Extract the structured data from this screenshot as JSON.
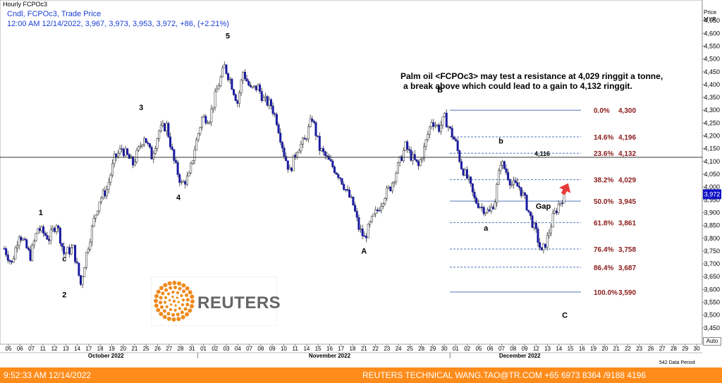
{
  "header": {
    "title": "Hourly FCPOc3",
    "legend_line1": "Cndl, FCPOc3, Trade Price",
    "legend_line2": "12:00 AM 12/14/2022, 3,967, 3,973, 3,953, 3,972, +86, (+2.21%)"
  },
  "annotation": {
    "line1": "Palm oil <FCPOc3> may test a resistance at 4,029 ringgit a tonne,",
    "line2": "a break above which could lead to a gain to 4,132 ringgit."
  },
  "logo": {
    "text": "REUTERS"
  },
  "footer": {
    "time": "9:52:33 AM 12/14/2022",
    "credit": "REUTERS TECHNICAL  WANG.TAO@TR.COM  +65 6973 8364 /9188 4196"
  },
  "axis": {
    "price_label": "Price",
    "currency": "MYR",
    "auto_label": "Auto",
    "period_label": "542 Data Period"
  },
  "colors": {
    "candle_up": "#ffffff",
    "candle_down": "#1a1aa0",
    "fib": "#5577bb",
    "fib_text": "#8b1a1a",
    "footer": "#ff8c1a",
    "arrow": "#e83a3a",
    "last_price": "#1010c8"
  },
  "chart_data": {
    "type": "candlestick",
    "ylim": [
      3400,
      4700
    ],
    "y_ticks": [
      3450,
      3500,
      3550,
      3600,
      3650,
      3700,
      3750,
      3800,
      3850,
      3900,
      3950,
      4000,
      4050,
      4100,
      4150,
      4200,
      4250,
      4300,
      4350,
      4400,
      4450,
      4500,
      4550,
      4600,
      4650
    ],
    "x_day_labels": [
      "05",
      "06",
      "07",
      "11",
      "12",
      "13",
      "14",
      "17",
      "18",
      "19",
      "20",
      "21",
      "25",
      "26",
      "27",
      "28",
      "31",
      "01",
      "02",
      "03",
      "04",
      "07",
      "08",
      "09",
      "10",
      "11",
      "14",
      "15",
      "16",
      "17",
      "18",
      "21",
      "22",
      "23",
      "24",
      "25",
      "28",
      "29",
      "30",
      "01",
      "02",
      "05",
      "06",
      "07",
      "08",
      "09",
      "12",
      "13",
      "14",
      "15",
      "16",
      "19",
      "20",
      "21",
      "22",
      "23",
      "26",
      "27",
      "28",
      "29",
      "30"
    ],
    "months": [
      "October 2022",
      "November 2022",
      "December 2022"
    ],
    "path": [
      [
        0,
        3760
      ],
      [
        4,
        3700
      ],
      [
        8,
        3820
      ],
      [
        14,
        3730
      ],
      [
        18,
        3840
      ],
      [
        24,
        3800
      ],
      [
        28,
        3860
      ],
      [
        32,
        3740
      ],
      [
        37,
        3760
      ],
      [
        41,
        3620
      ],
      [
        44,
        3740
      ],
      [
        48,
        3870
      ],
      [
        51,
        3950
      ],
      [
        55,
        3990
      ],
      [
        59,
        4110
      ],
      [
        63,
        4150
      ],
      [
        69,
        4090
      ],
      [
        75,
        4200
      ],
      [
        79,
        4120
      ],
      [
        83,
        4220
      ],
      [
        87,
        4240
      ],
      [
        91,
        4100
      ],
      [
        95,
        4010
      ],
      [
        99,
        4040
      ],
      [
        102,
        4150
      ],
      [
        106,
        4270
      ],
      [
        110,
        4270
      ],
      [
        114,
        4380
      ],
      [
        118,
        4470
      ],
      [
        121,
        4420
      ],
      [
        125,
        4330
      ],
      [
        128,
        4450
      ],
      [
        132,
        4380
      ],
      [
        136,
        4390
      ],
      [
        139,
        4340
      ],
      [
        143,
        4320
      ],
      [
        146,
        4260
      ],
      [
        150,
        4130
      ],
      [
        153,
        4060
      ],
      [
        157,
        4150
      ],
      [
        161,
        4180
      ],
      [
        165,
        4270
      ],
      [
        169,
        4150
      ],
      [
        172,
        4120
      ],
      [
        176,
        4080
      ],
      [
        180,
        4040
      ],
      [
        183,
        3990
      ],
      [
        187,
        3930
      ],
      [
        190,
        3840
      ],
      [
        193,
        3800
      ],
      [
        197,
        3870
      ],
      [
        200,
        3910
      ],
      [
        204,
        3970
      ],
      [
        207,
        4000
      ],
      [
        211,
        4080
      ],
      [
        215,
        4160
      ],
      [
        218,
        4120
      ],
      [
        222,
        4080
      ],
      [
        225,
        4150
      ],
      [
        229,
        4260
      ],
      [
        233,
        4230
      ],
      [
        236,
        4270
      ],
      [
        239,
        4220
      ],
      [
        242,
        4170
      ],
      [
        245,
        4080
      ],
      [
        249,
        4020
      ],
      [
        252,
        3950
      ],
      [
        256,
        3920
      ],
      [
        260,
        3900
      ],
      [
        263,
        3950
      ],
      [
        266,
        4100
      ],
      [
        269,
        4060
      ],
      [
        272,
        4010
      ],
      [
        276,
        4000
      ],
      [
        279,
        3950
      ],
      [
        282,
        3880
      ],
      [
        285,
        3820
      ],
      [
        288,
        3740
      ],
      [
        291,
        3800
      ],
      [
        294,
        3880
      ],
      [
        297,
        3930
      ],
      [
        300,
        3970
      ]
    ],
    "fib_levels": [
      {
        "pct": "0.0%",
        "value": "4,300",
        "price": 4300
      },
      {
        "pct": "14.6%",
        "value": "4,196",
        "price": 4196
      },
      {
        "pct": "23.6%",
        "value": "4,132",
        "price": 4132
      },
      {
        "pct": "38.2%",
        "value": "4,029",
        "price": 4029
      },
      {
        "pct": "50.0%",
        "value": "3,945",
        "price": 3945
      },
      {
        "pct": "61.8%",
        "value": "3,861",
        "price": 3861
      },
      {
        "pct": "76.4%",
        "value": "3,758",
        "price": 3758
      },
      {
        "pct": "86.4%",
        "value": "3,687",
        "price": 3687
      },
      {
        "pct": "100.0%",
        "value": "3,590",
        "price": 3590
      }
    ],
    "horizontal_line": {
      "price": 4116,
      "label": "4,116"
    },
    "wave_labels": [
      {
        "text": "1",
        "price": 3890,
        "day": "11"
      },
      {
        "text": "2",
        "price": 3570,
        "day": "13"
      },
      {
        "text": "3",
        "price": 4300,
        "day": "25"
      },
      {
        "text": "4",
        "price": 3950,
        "day": "28"
      },
      {
        "text": "5",
        "price": 4580,
        "day": "03"
      },
      {
        "text": "A",
        "price": 3740,
        "day": "21"
      },
      {
        "text": "B",
        "price": 4370,
        "day": "30"
      },
      {
        "text": "a",
        "price": 3830,
        "day": "06"
      },
      {
        "text": "b",
        "price": 4170,
        "day": "07"
      },
      {
        "text": "c",
        "price": 3710,
        "day": "13"
      },
      {
        "text": "C",
        "price": 3490,
        "day": "14"
      },
      {
        "text": "Gap",
        "price": 3915,
        "day": "12"
      }
    ],
    "last_price": {
      "value": "3,972",
      "price": 3972
    }
  }
}
